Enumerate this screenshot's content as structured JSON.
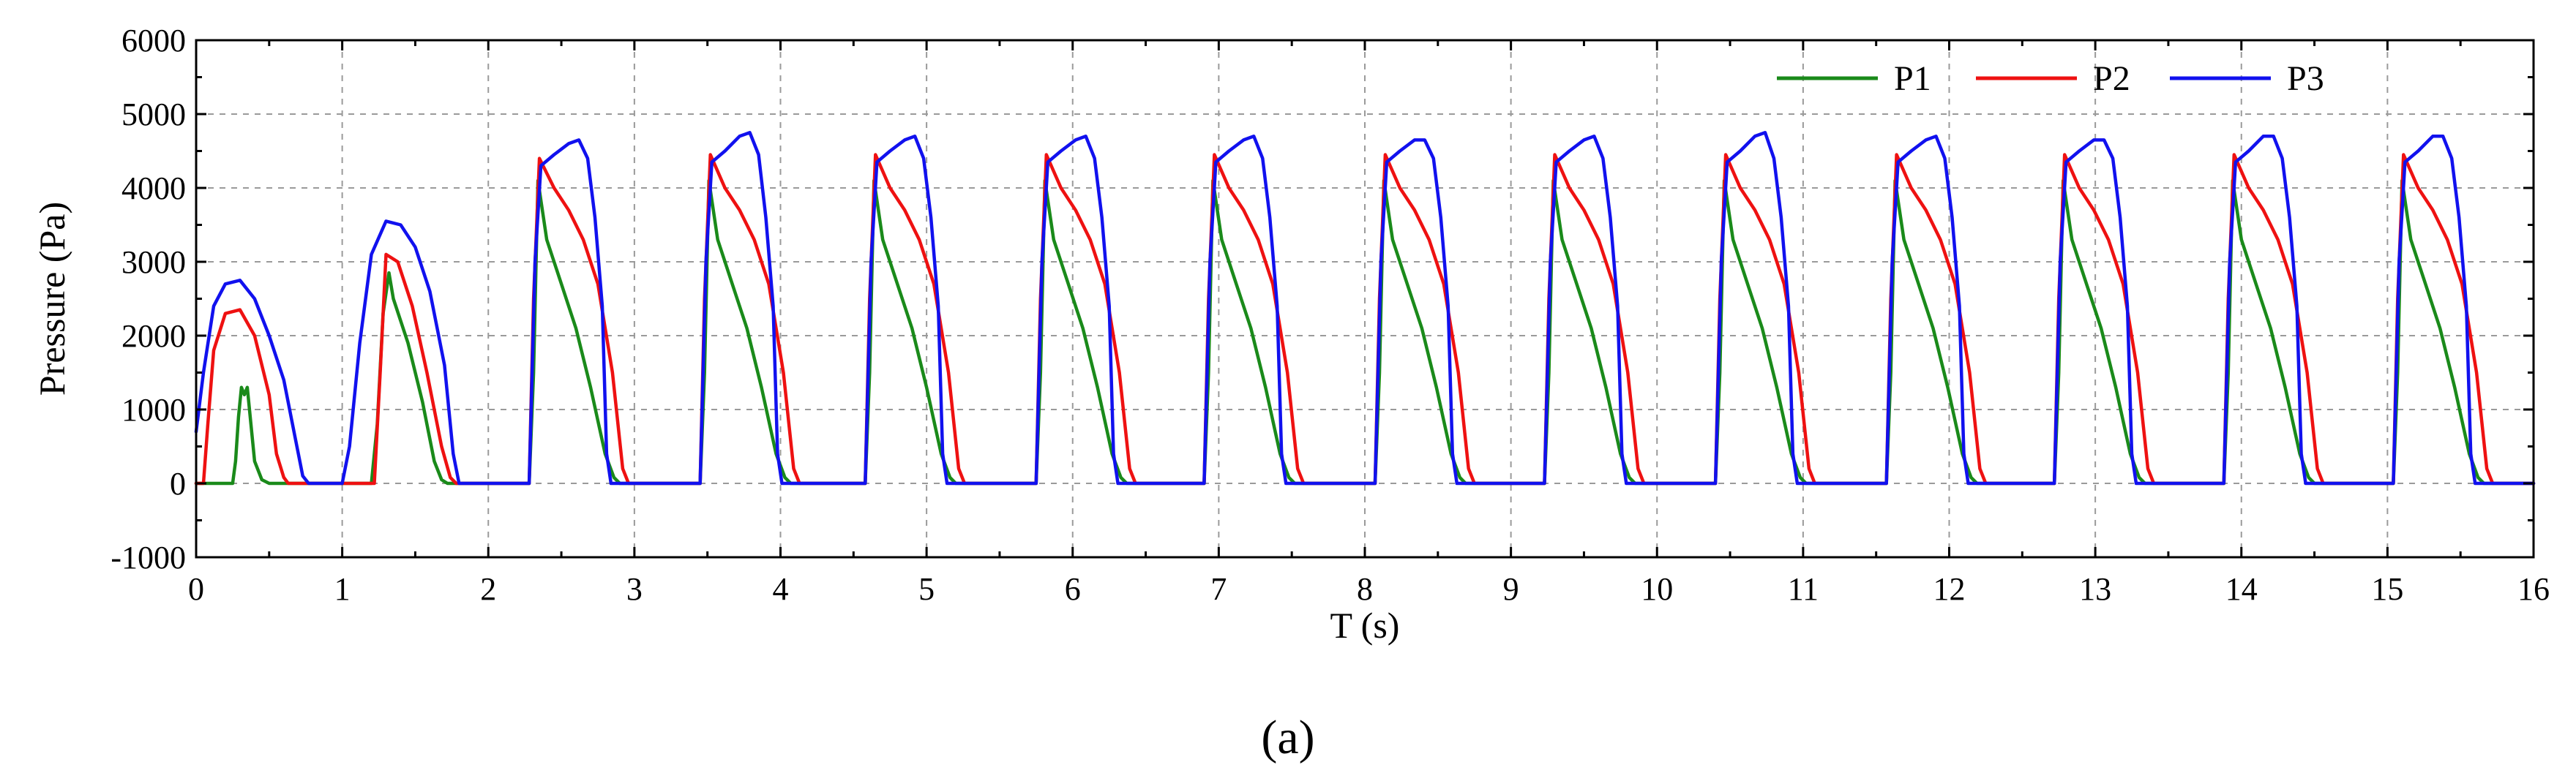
{
  "chart_data": {
    "type": "line",
    "title": "",
    "xlabel": "T (s)",
    "ylabel": "Pressure (Pa)",
    "xlim": [
      0,
      16
    ],
    "ylim": [
      -1000,
      6000
    ],
    "x_ticks": [
      "0",
      "1",
      "2",
      "3",
      "4",
      "5",
      "6",
      "7",
      "8",
      "9",
      "10",
      "11",
      "12",
      "13",
      "14",
      "15",
      "16"
    ],
    "y_ticks": [
      "-1000",
      "0",
      "1000",
      "2000",
      "3000",
      "4000",
      "5000",
      "6000"
    ],
    "grid": true,
    "legend_position": "top-right",
    "subfigure_label": "(a)",
    "series": [
      {
        "name": "P1",
        "color": "#1a8a1a",
        "x": [
          0,
          0.25,
          0.27,
          0.29,
          0.31,
          0.33,
          0.35,
          0.37,
          0.4,
          0.45,
          0.5,
          1.2,
          1.24,
          1.28,
          1.32,
          1.35,
          1.45,
          1.55,
          1.63,
          1.68,
          1.72,
          2.28,
          2.31,
          2.34,
          2.4,
          2.5,
          2.6,
          2.7,
          2.8,
          2.86,
          2.9,
          3.45,
          3.48,
          3.51,
          3.57,
          3.67,
          3.77,
          3.87,
          3.97,
          4.03,
          4.07,
          4.58,
          4.61,
          4.64,
          4.7,
          4.8,
          4.9,
          5.0,
          5.1,
          5.16,
          5.2,
          5.75,
          5.78,
          5.81,
          5.87,
          5.97,
          6.07,
          6.17,
          6.27,
          6.33,
          6.37,
          6.9,
          6.93,
          6.96,
          7.02,
          7.12,
          7.22,
          7.32,
          7.42,
          7.48,
          7.52,
          8.07,
          8.1,
          8.13,
          8.19,
          8.29,
          8.39,
          8.49,
          8.59,
          8.65,
          8.69,
          9.23,
          9.26,
          9.29,
          9.35,
          9.45,
          9.55,
          9.65,
          9.75,
          9.81,
          9.85,
          10.4,
          10.43,
          10.46,
          10.52,
          10.62,
          10.72,
          10.82,
          10.92,
          10.98,
          11.02,
          11.57,
          11.6,
          11.63,
          11.69,
          11.79,
          11.89,
          11.99,
          12.09,
          12.15,
          12.19,
          12.72,
          12.75,
          12.78,
          12.84,
          12.94,
          13.04,
          13.14,
          13.24,
          13.3,
          13.34,
          13.88,
          13.91,
          13.94,
          14.0,
          14.1,
          14.2,
          14.3,
          14.4,
          14.46,
          14.5,
          15.04,
          15.07,
          15.1,
          15.16,
          15.26,
          15.36,
          15.46,
          15.56,
          15.62,
          15.66,
          16
        ],
        "y": [
          0,
          0,
          300,
          900,
          1300,
          1200,
          1300,
          900,
          300,
          50,
          0,
          0,
          800,
          2300,
          2850,
          2500,
          1900,
          1100,
          300,
          50,
          0,
          0,
          1500,
          4100,
          3300,
          2700,
          2100,
          1300,
          400,
          80,
          0,
          0,
          1500,
          4100,
          3300,
          2700,
          2100,
          1300,
          400,
          80,
          0,
          0,
          1500,
          4100,
          3300,
          2700,
          2100,
          1300,
          400,
          80,
          0,
          0,
          1500,
          4100,
          3300,
          2700,
          2100,
          1300,
          400,
          80,
          0,
          0,
          1500,
          4100,
          3300,
          2700,
          2100,
          1300,
          400,
          80,
          0,
          0,
          1500,
          4100,
          3300,
          2700,
          2100,
          1300,
          400,
          80,
          0,
          0,
          1500,
          4100,
          3300,
          2700,
          2100,
          1300,
          400,
          80,
          0,
          0,
          1500,
          4100,
          3300,
          2700,
          2100,
          1300,
          400,
          80,
          0,
          0,
          1500,
          4100,
          3300,
          2700,
          2100,
          1300,
          400,
          80,
          0,
          0,
          1500,
          4100,
          3300,
          2700,
          2100,
          1300,
          400,
          80,
          0,
          0,
          1500,
          4100,
          3300,
          2700,
          2100,
          1300,
          400,
          80,
          0,
          0,
          1500,
          4100,
          3300,
          2700,
          2100,
          1300,
          400,
          80,
          0,
          0
        ]
      },
      {
        "name": "P2",
        "color": "#ee1111",
        "x": [
          0,
          0.05,
          0.08,
          0.12,
          0.2,
          0.3,
          0.4,
          0.5,
          0.55,
          0.6,
          0.63,
          1.22,
          1.26,
          1.3,
          1.38,
          1.48,
          1.58,
          1.68,
          1.74,
          1.78,
          2.28,
          2.31,
          2.35,
          2.45,
          2.55,
          2.65,
          2.75,
          2.85,
          2.92,
          2.96,
          3.45,
          3.48,
          3.52,
          3.62,
          3.72,
          3.82,
          3.92,
          4.02,
          4.09,
          4.13,
          4.58,
          4.61,
          4.65,
          4.75,
          4.85,
          4.95,
          5.05,
          5.15,
          5.22,
          5.26,
          5.75,
          5.78,
          5.82,
          5.92,
          6.02,
          6.12,
          6.22,
          6.32,
          6.39,
          6.43,
          6.9,
          6.93,
          6.97,
          7.07,
          7.17,
          7.27,
          7.37,
          7.47,
          7.54,
          7.58,
          8.07,
          8.1,
          8.14,
          8.24,
          8.34,
          8.44,
          8.54,
          8.64,
          8.71,
          8.75,
          9.23,
          9.26,
          9.3,
          9.4,
          9.5,
          9.6,
          9.7,
          9.8,
          9.87,
          9.91,
          10.4,
          10.43,
          10.47,
          10.57,
          10.67,
          10.77,
          10.87,
          10.97,
          11.04,
          11.08,
          11.57,
          11.6,
          11.64,
          11.74,
          11.84,
          11.94,
          12.04,
          12.14,
          12.21,
          12.25,
          12.72,
          12.75,
          12.79,
          12.89,
          12.99,
          13.09,
          13.19,
          13.29,
          13.36,
          13.4,
          13.88,
          13.91,
          13.95,
          14.05,
          14.15,
          14.25,
          14.35,
          14.45,
          14.52,
          14.56,
          15.04,
          15.07,
          15.11,
          15.21,
          15.31,
          15.41,
          15.51,
          15.61,
          15.68,
          15.72,
          16
        ],
        "y": [
          0,
          0,
          800,
          1800,
          2300,
          2350,
          2000,
          1200,
          400,
          80,
          0,
          0,
          1500,
          3100,
          3000,
          2400,
          1500,
          500,
          80,
          0,
          0,
          2500,
          4400,
          4000,
          3700,
          3300,
          2700,
          1500,
          200,
          0,
          0,
          2500,
          4450,
          4000,
          3700,
          3300,
          2700,
          1500,
          200,
          0,
          0,
          2500,
          4450,
          4000,
          3700,
          3300,
          2700,
          1500,
          200,
          0,
          0,
          2500,
          4450,
          4000,
          3700,
          3300,
          2700,
          1500,
          200,
          0,
          0,
          2500,
          4450,
          4000,
          3700,
          3300,
          2700,
          1500,
          200,
          0,
          0,
          2500,
          4450,
          4000,
          3700,
          3300,
          2700,
          1500,
          200,
          0,
          0,
          2500,
          4450,
          4000,
          3700,
          3300,
          2700,
          1500,
          200,
          0,
          0,
          2500,
          4450,
          4000,
          3700,
          3300,
          2700,
          1500,
          200,
          0,
          0,
          2500,
          4450,
          4000,
          3700,
          3300,
          2700,
          1500,
          200,
          0,
          0,
          2500,
          4450,
          4000,
          3700,
          3300,
          2700,
          1500,
          200,
          0,
          0,
          2500,
          4450,
          4000,
          3700,
          3300,
          2700,
          1500,
          200,
          0,
          0,
          2500,
          4450,
          4000,
          3700,
          3300,
          2700,
          1500,
          200,
          0,
          0
        ]
      },
      {
        "name": "P3",
        "color": "#1111ee",
        "x": [
          0,
          0.05,
          0.12,
          0.2,
          0.3,
          0.4,
          0.5,
          0.6,
          0.68,
          0.73,
          0.77,
          1.0,
          1.05,
          1.12,
          1.2,
          1.3,
          1.4,
          1.5,
          1.6,
          1.7,
          1.76,
          1.8,
          2.28,
          2.32,
          2.36,
          2.45,
          2.55,
          2.62,
          2.68,
          2.73,
          2.78,
          2.81,
          2.84,
          3.45,
          3.49,
          3.53,
          3.62,
          3.72,
          3.79,
          3.85,
          3.9,
          3.95,
          3.98,
          4.01,
          4.58,
          4.62,
          4.66,
          4.75,
          4.85,
          4.92,
          4.98,
          5.03,
          5.08,
          5.11,
          5.14,
          5.75,
          5.79,
          5.83,
          5.92,
          6.02,
          6.09,
          6.15,
          6.2,
          6.25,
          6.28,
          6.31,
          6.9,
          6.94,
          6.98,
          7.07,
          7.17,
          7.24,
          7.3,
          7.35,
          7.4,
          7.43,
          7.46,
          8.07,
          8.11,
          8.15,
          8.24,
          8.34,
          8.41,
          8.47,
          8.52,
          8.57,
          8.6,
          8.63,
          9.23,
          9.27,
          9.31,
          9.4,
          9.5,
          9.57,
          9.63,
          9.68,
          9.73,
          9.76,
          9.79,
          10.4,
          10.44,
          10.48,
          10.57,
          10.67,
          10.74,
          10.8,
          10.85,
          10.9,
          10.93,
          10.96,
          11.57,
          11.61,
          11.65,
          11.74,
          11.84,
          11.91,
          11.97,
          12.02,
          12.07,
          12.1,
          12.13,
          12.72,
          12.76,
          12.8,
          12.89,
          12.99,
          13.06,
          13.12,
          13.17,
          13.22,
          13.25,
          13.28,
          13.88,
          13.92,
          13.96,
          14.05,
          14.15,
          14.22,
          14.28,
          14.33,
          14.38,
          14.41,
          14.44,
          15.04,
          15.08,
          15.12,
          15.21,
          15.31,
          15.38,
          15.44,
          15.49,
          15.54,
          15.57,
          15.6,
          16
        ],
        "y": [
          700,
          1500,
          2400,
          2700,
          2750,
          2500,
          2000,
          1400,
          600,
          100,
          0,
          0,
          500,
          1900,
          3100,
          3550,
          3500,
          3200,
          2600,
          1600,
          400,
          0,
          0,
          3000,
          4300,
          4450,
          4600,
          4650,
          4400,
          3600,
          2400,
          400,
          0,
          0,
          3000,
          4350,
          4500,
          4700,
          4750,
          4450,
          3600,
          2400,
          400,
          0,
          0,
          3000,
          4350,
          4500,
          4650,
          4700,
          4400,
          3600,
          2400,
          400,
          0,
          0,
          3000,
          4350,
          4500,
          4650,
          4700,
          4400,
          3600,
          2400,
          400,
          0,
          0,
          3000,
          4350,
          4500,
          4650,
          4700,
          4400,
          3600,
          2400,
          400,
          0,
          0,
          3000,
          4350,
          4500,
          4650,
          4650,
          4400,
          3600,
          2400,
          400,
          0,
          0,
          3000,
          4350,
          4500,
          4650,
          4700,
          4400,
          3600,
          2400,
          400,
          0,
          0,
          3000,
          4350,
          4500,
          4700,
          4750,
          4400,
          3600,
          2400,
          400,
          0,
          0,
          3000,
          4350,
          4500,
          4650,
          4700,
          4400,
          3600,
          2400,
          400,
          0,
          0,
          3000,
          4350,
          4500,
          4650,
          4650,
          4400,
          3600,
          2400,
          400,
          0,
          0,
          3000,
          4350,
          4500,
          4700,
          4700,
          4400,
          3600,
          2400,
          400,
          0,
          0,
          3000,
          4350,
          4500,
          4700,
          4700,
          4400,
          3600,
          2400,
          400,
          0,
          0
        ]
      }
    ]
  }
}
